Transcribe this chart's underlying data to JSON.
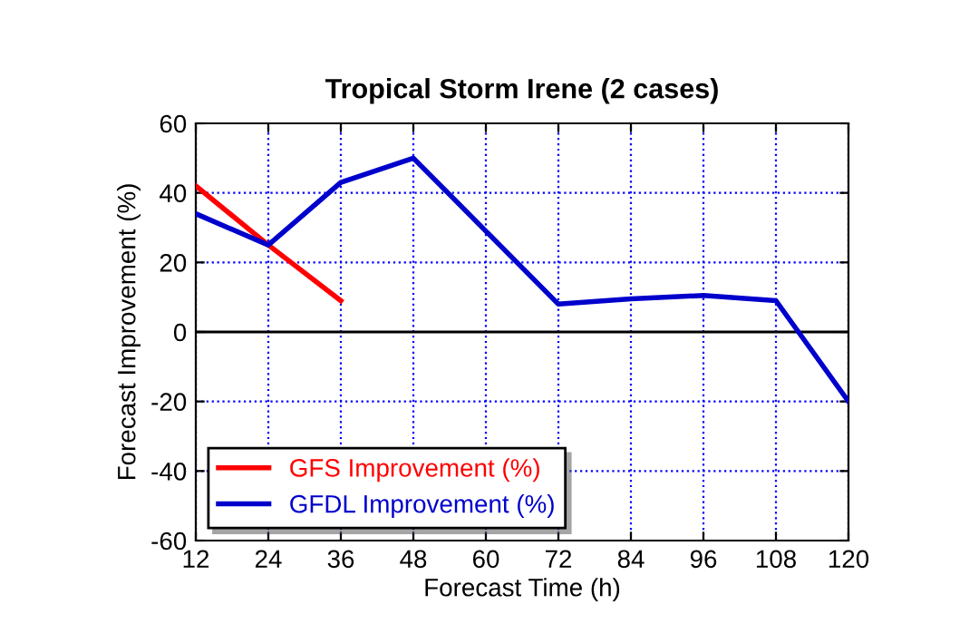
{
  "chart_data": {
    "type": "line",
    "title": "Tropical Storm Irene (2 cases)",
    "xlabel": "Forecast Time (h)",
    "ylabel": "Forecast Improvement (%)",
    "x": [
      12,
      24,
      36,
      48,
      60,
      72,
      84,
      96,
      108,
      120
    ],
    "series": [
      {
        "name": "GFS Improvement (%)",
        "color": "#ff0000",
        "values": [
          42,
          25,
          9,
          null,
          null,
          null,
          null,
          null,
          null,
          null
        ]
      },
      {
        "name": "GFDL Improvement (%)",
        "color": "#0000cc",
        "values": [
          34,
          25,
          43,
          50,
          29,
          8,
          9.5,
          10.5,
          9,
          -20
        ]
      }
    ],
    "xlim": [
      12,
      120
    ],
    "xticks": [
      12,
      24,
      36,
      48,
      60,
      72,
      84,
      96,
      108,
      120
    ],
    "ylim": [
      -60,
      60
    ],
    "yticks": [
      -60,
      -40,
      -20,
      0,
      20,
      40,
      60
    ],
    "ref_lines": [
      {
        "axis": "y",
        "value": 0,
        "color": "#000000",
        "line_style": "solid"
      }
    ],
    "grid": true,
    "legend": "bottom left",
    "marker": "none",
    "line_style": "solid"
  }
}
